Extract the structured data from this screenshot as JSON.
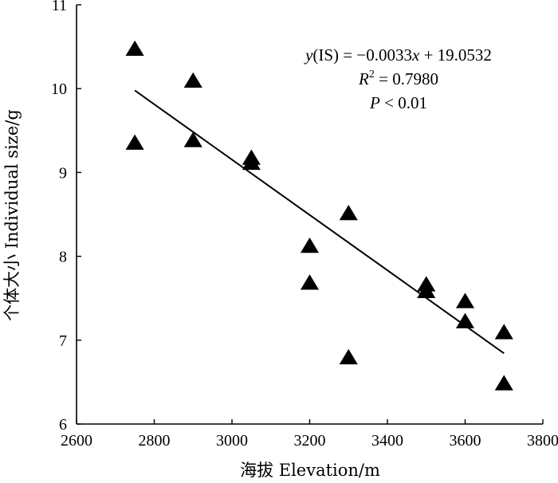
{
  "chart_data": {
    "type": "scatter",
    "xlabel": "海拔 Elevation/m",
    "ylabel": "个体大小 Individual size/g",
    "xlim": [
      2600,
      3800
    ],
    "ylim": [
      6,
      11
    ],
    "x_ticks": [
      2600,
      2800,
      3000,
      3200,
      3400,
      3600,
      3800
    ],
    "y_ticks": [
      6,
      7,
      8,
      9,
      10,
      11
    ],
    "marker": "triangle",
    "marker_color": "#000000",
    "grid": false,
    "series": [
      {
        "points": [
          {
            "x": 2750,
            "y": 10.47
          },
          {
            "x": 2750,
            "y": 9.35
          },
          {
            "x": 2900,
            "y": 10.09
          },
          {
            "x": 2900,
            "y": 9.38
          },
          {
            "x": 3050,
            "y": 9.17
          },
          {
            "x": 3050,
            "y": 9.11
          },
          {
            "x": 3200,
            "y": 8.12
          },
          {
            "x": 3200,
            "y": 7.68
          },
          {
            "x": 3300,
            "y": 8.51
          },
          {
            "x": 3300,
            "y": 6.79
          },
          {
            "x": 3500,
            "y": 7.66
          },
          {
            "x": 3500,
            "y": 7.58
          },
          {
            "x": 3600,
            "y": 7.46
          },
          {
            "x": 3600,
            "y": 7.22
          },
          {
            "x": 3700,
            "y": 7.09
          },
          {
            "x": 3700,
            "y": 6.48
          }
        ]
      }
    ],
    "trendline": {
      "slope": -0.0033,
      "intercept": 19.0532,
      "x_range": [
        2750,
        3700
      ]
    },
    "annotations": {
      "equation": {
        "lhs": "y",
        "paren": "(IS) = −0.0033",
        "var": "x",
        "rest": " + 19.0532"
      },
      "r2": {
        "lhs": "R",
        "sup": "2",
        "rest": " = 0.7980"
      },
      "p": {
        "lhs": "P",
        "rest": " < 0.01"
      }
    }
  }
}
